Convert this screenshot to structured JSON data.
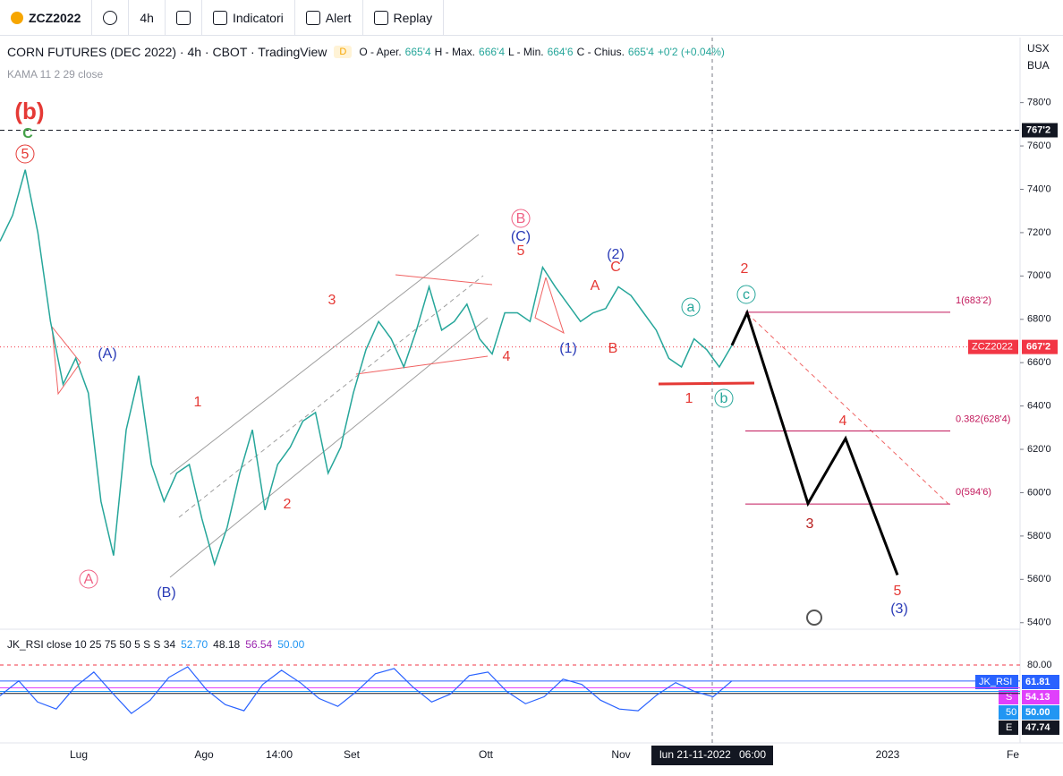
{
  "toolbar": {
    "symbol": "ZCZ2022",
    "interval": "4h",
    "items": [
      "Indicatori",
      "Alert",
      "Replay"
    ]
  },
  "legend": {
    "title": "CORN FUTURES (DEC 2022) · 4h · CBOT · TradingView",
    "badge": "D",
    "ohlc": [
      {
        "label": "O - Aper.",
        "value": "665'4"
      },
      {
        "label": "H - Max.",
        "value": "666'4"
      },
      {
        "label": "L - Min.",
        "value": "664'6"
      },
      {
        "label": "C - Chius.",
        "value": "665'4"
      }
    ],
    "change": "+0'2 (+0.04%)",
    "indicator": "KAMA 11 2 29 close"
  },
  "price_axis": {
    "currency": "USX",
    "unit": "BUA",
    "ylim": [
      537,
      810
    ],
    "yticks": [
      {
        "value": 780,
        "label": "780'0"
      },
      {
        "value": 760,
        "label": "760'0"
      },
      {
        "value": 740,
        "label": "740'0"
      },
      {
        "value": 720,
        "label": "720'0"
      },
      {
        "value": 700,
        "label": "700'0"
      },
      {
        "value": 680,
        "label": "680'0"
      },
      {
        "value": 660,
        "label": "660'0"
      },
      {
        "value": 640,
        "label": "640'0"
      },
      {
        "value": 620,
        "label": "620'0"
      },
      {
        "value": 600,
        "label": "600'0"
      },
      {
        "value": 580,
        "label": "580'0"
      },
      {
        "value": 560,
        "label": "560'0"
      },
      {
        "value": 540,
        "label": "540'0"
      }
    ]
  },
  "markers": [
    {
      "value": 767.25,
      "label": "767'2",
      "color": "#131722"
    },
    {
      "name": "ZCZ2022",
      "value": 667.25,
      "label": "667'2",
      "color": "#f23645"
    }
  ],
  "price": {
    "color": "#26a69a",
    "values": [
      716,
      728,
      749,
      720,
      679,
      650,
      662,
      646,
      596,
      571,
      629,
      654,
      613,
      596,
      609,
      613,
      588,
      567,
      584,
      609,
      629,
      592,
      613,
      621,
      633,
      637,
      609,
      621,
      646,
      666,
      679,
      671,
      658,
      675,
      695,
      675,
      679,
      687,
      671,
      664,
      683,
      683,
      679,
      704,
      695,
      687,
      679,
      683,
      685,
      695,
      691,
      683,
      675,
      662,
      658,
      671,
      666,
      658,
      668
    ]
  },
  "forecast": {
    "color": "#000000",
    "values": [
      668,
      683,
      595,
      625,
      562
    ]
  },
  "fib": [
    {
      "label": "1(683'2)",
      "value": 683.25
    },
    {
      "label": "0.382(628'4)",
      "value": 628.5
    },
    {
      "label": "0(594'6)",
      "value": 594.75
    }
  ],
  "waves": [
    {
      "text": "(b)",
      "color": "#e53935"
    },
    {
      "text": "C",
      "color": "#43a047"
    },
    {
      "text": "5",
      "color": "#e53935",
      "circle": true
    },
    {
      "text": "A",
      "color": "#ef5f83",
      "circle": true
    },
    {
      "text": "(A)",
      "color": "#2a3bb7"
    },
    {
      "text": "(B)",
      "color": "#2a3bb7"
    },
    {
      "text": "1",
      "color": "#e53935"
    },
    {
      "text": "2",
      "color": "#e53935"
    },
    {
      "text": "3",
      "color": "#e53935"
    },
    {
      "text": "4",
      "color": "#e53935"
    },
    {
      "text": "B",
      "color": "#ef5f83",
      "circle": true
    },
    {
      "text": "(C)",
      "color": "#2a3bb7"
    },
    {
      "text": "5",
      "color": "#e53935"
    },
    {
      "text": "(1)",
      "color": "#2a3bb7"
    },
    {
      "text": "A",
      "color": "#e53935"
    },
    {
      "text": "B",
      "color": "#e53935"
    },
    {
      "text": "(2)",
      "color": "#2a3bb7"
    },
    {
      "text": "C",
      "color": "#e53935"
    },
    {
      "text": "a",
      "color": "#26a69a",
      "circle": true
    },
    {
      "text": "1",
      "color": "#e53935"
    },
    {
      "text": "b",
      "color": "#26a69a",
      "circle": true
    },
    {
      "text": "2",
      "color": "#e53935"
    },
    {
      "text": "c",
      "color": "#26a69a",
      "circle": true
    },
    {
      "text": "3",
      "color": "#b71c1c"
    },
    {
      "text": "4",
      "color": "#e53935"
    },
    {
      "text": "5",
      "color": "#e53935"
    },
    {
      "text": "(3)",
      "color": "#2a3bb7"
    }
  ],
  "time_axis": {
    "labels": [
      "Lug",
      "Ago",
      "14:00",
      "Set",
      "Ott",
      "Nov",
      "2023",
      "Fe"
    ],
    "crosshair": [
      "lun 21-11-2022",
      "06:00"
    ]
  },
  "rsi": {
    "legend": "JK_RSI close 10 25 75 50 5 S S 34",
    "legend_values": [
      {
        "text": "52.70",
        "color": "#2196f3"
      },
      {
        "text": "48.18",
        "color": "#131722"
      },
      {
        "text": "56.54",
        "color": "#9c27b0"
      },
      {
        "text": "50.00",
        "color": "#2196f3"
      }
    ],
    "ylim": [
      -8.5,
      113.6
    ],
    "yticks": [
      {
        "value": 80,
        "label": "80.00"
      }
    ],
    "levels": [
      {
        "name": "JK_RSI",
        "value": 61.81,
        "label": "61.81",
        "color": "#2962ff"
      },
      {
        "name": "S",
        "value": 54.13,
        "label": "54.13",
        "color": "#e040fb"
      },
      {
        "name": "50",
        "value": 50,
        "label": "50.00",
        "color": "#2196f3"
      },
      {
        "name": "E",
        "value": 47.74,
        "label": "47.74",
        "color": "#131722"
      }
    ],
    "color": "#2962ff",
    "values": [
      45,
      62,
      38,
      30,
      55,
      72,
      48,
      25,
      40,
      66,
      78,
      52,
      35,
      28,
      58,
      74,
      60,
      42,
      33,
      50,
      70,
      76,
      55,
      38,
      47,
      68,
      72,
      50,
      36,
      44,
      64,
      58,
      40,
      30,
      28,
      46,
      60,
      50,
      44,
      62
    ]
  }
}
